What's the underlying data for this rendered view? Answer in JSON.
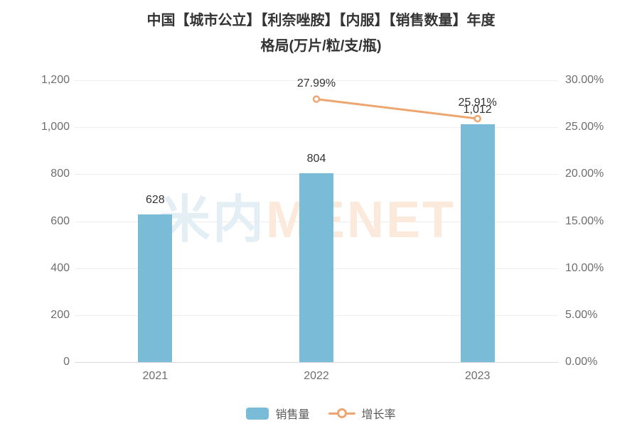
{
  "title": {
    "line1": "中国【城市公立】【利奈唑胺】【内服】【销售数量】年度",
    "line2": "格局(万片/粒/支/瓶)"
  },
  "watermark": {
    "part1": "米内",
    "part2": "MENET"
  },
  "colors": {
    "bar": "#7ABCD8",
    "line": "#EDA66F",
    "title_text": "#333333",
    "axis_text": "#6E6E6E",
    "grid": "#EDEDED"
  },
  "chart_data": {
    "type": "bar",
    "subtype": "bar-line-combo",
    "title": "中国【城市公立】【利奈唑胺】【内服】【销售数量】年度格局(万片/粒/支/瓶)",
    "categories": [
      "2021",
      "2022",
      "2023"
    ],
    "series": [
      {
        "name": "销售量",
        "type": "bar",
        "axis": "left",
        "values": [
          628,
          804,
          1012
        ],
        "labels": [
          "628",
          "804",
          "1,012"
        ],
        "color": "#7ABCD8"
      },
      {
        "name": "增长率",
        "type": "line",
        "axis": "right",
        "values": [
          null,
          27.99,
          25.91
        ],
        "labels": [
          null,
          "27.99%",
          "25.91%"
        ],
        "color": "#EDA66F"
      }
    ],
    "left_axis": {
      "min": 0,
      "max": 1200,
      "ticks": [
        "0",
        "200",
        "400",
        "600",
        "800",
        "1,000",
        "1,200"
      ]
    },
    "right_axis": {
      "min": 0,
      "max": 30,
      "ticks": [
        "0.00%",
        "5.00%",
        "10.00%",
        "15.00%",
        "20.00%",
        "25.00%",
        "30.00%"
      ]
    },
    "grid": true,
    "legend_position": "bottom"
  },
  "legend": {
    "items": [
      {
        "label": "销售量",
        "type": "bar",
        "color": "#7ABCD8"
      },
      {
        "label": "增长率",
        "type": "line",
        "color": "#EDA66F"
      }
    ]
  }
}
